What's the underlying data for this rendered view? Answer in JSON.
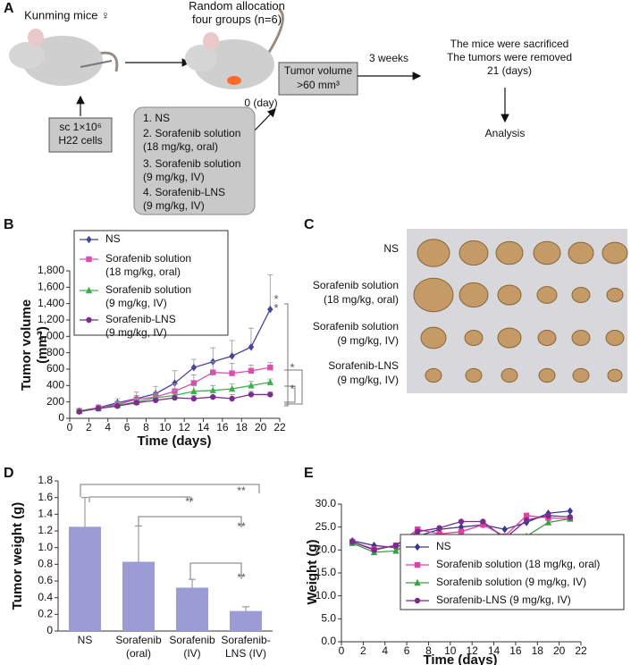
{
  "panel_labels": [
    "A",
    "B",
    "C",
    "D",
    "E"
  ],
  "panel_a": {
    "mouse_label": "Kunming mice ♀",
    "allocation": "Random allocation\nfour groups (n=6)",
    "injection": "sc 1×10⁶\nH22 cells",
    "tumor_box": "Tumor volume\n>60 mm³",
    "start_day": "0 (day)",
    "duration": "3 weeks",
    "end_text": "The mice were sacrificed\nThe tumors were removed\n21 (days)",
    "analysis": "Analysis",
    "groups": [
      "1. NS",
      "2. Sorafenib solution\n(18 mg/kg, oral)",
      "3. Sorafenib solution\n(9 mg/kg, IV)",
      "4. Sorafenib-LNS\n(9 mg/kg, IV)"
    ]
  },
  "panel_c": {
    "row_labels": [
      "NS",
      "Sorafenib solution\n(18 mg/kg, oral)",
      "Sorafenib solution\n(9 mg/kg, IV)",
      "Sorafenib-LNS\n(9 mg/kg, IV)"
    ]
  },
  "chart_data": [
    {
      "type": "line",
      "x_label": "Time (days)",
      "y_label": "Tumor volume\n(mm³)",
      "x": [
        1,
        3,
        5,
        7,
        9,
        11,
        13,
        15,
        17,
        19,
        21
      ],
      "xlim": [
        0,
        22
      ],
      "xticks": [
        0,
        2,
        4,
        6,
        8,
        10,
        12,
        14,
        16,
        18,
        20,
        22
      ],
      "ylim": [
        0,
        1800
      ],
      "yticks": [
        0,
        200,
        400,
        600,
        800,
        {
          "value": 1000,
          "label": "1,000"
        },
        {
          "value": 1200,
          "label": "1,200"
        },
        {
          "value": 1400,
          "label": "1,400"
        },
        {
          "value": 1600,
          "label": "1,600"
        },
        {
          "value": 1800,
          "label": "1,800"
        }
      ],
      "series": [
        {
          "name": "NS",
          "color": "#45459a",
          "marker": "diamond",
          "values": [
            90,
            130,
            190,
            240,
            300,
            430,
            620,
            690,
            760,
            870,
            1330
          ],
          "errors": [
            20,
            30,
            50,
            80,
            90,
            150,
            100,
            170,
            190,
            230,
            420
          ]
        },
        {
          "name": "Sorafenib solution\n(18 mg/kg, oral)",
          "color": "#d94fb0",
          "marker": "square",
          "values": [
            90,
            130,
            170,
            230,
            260,
            330,
            430,
            560,
            550,
            580,
            620
          ],
          "errors": [
            20,
            20,
            40,
            50,
            60,
            90,
            100,
            130,
            120,
            70,
            60
          ]
        },
        {
          "name": "Sorafenib solution\n(9 mg/kg, IV)",
          "color": "#3fae49",
          "marker": "triangle",
          "values": [
            90,
            120,
            160,
            200,
            250,
            280,
            330,
            340,
            360,
            400,
            440
          ],
          "errors": [
            20,
            20,
            30,
            40,
            50,
            60,
            70,
            60,
            60,
            50,
            40
          ]
        },
        {
          "name": "Sorafenib-LNS\n(9 mg/kg, IV)",
          "color": "#7b2d8e",
          "marker": "circle",
          "values": [
            80,
            120,
            150,
            190,
            220,
            250,
            240,
            260,
            240,
            290,
            290
          ],
          "errors": [
            20,
            20,
            30,
            40,
            40,
            50,
            40,
            50,
            50,
            40,
            30
          ]
        }
      ],
      "annotations": [
        "*\n*",
        "*",
        "*"
      ]
    },
    {
      "type": "bar",
      "y_label": "Tumor weight (g)",
      "categories": [
        "NS",
        "Sorafenib\n(oral)",
        "Sorafenib\n(IV)",
        "Sorafenib-\nLNS (IV)"
      ],
      "values": [
        1.25,
        0.83,
        0.52,
        0.24
      ],
      "errors": [
        0.35,
        0.43,
        0.1,
        0.05
      ],
      "color": "#9b9bd6",
      "ylim": [
        0,
        1.8
      ],
      "yticks": [
        0,
        0.2,
        0.4,
        0.6,
        0.8,
        {
          "value": 1,
          "label": "1.0"
        },
        1.2,
        1.4,
        1.6,
        1.8
      ],
      "annotations": [
        "**",
        "**",
        "**",
        "**"
      ]
    },
    {
      "type": "line",
      "x_label": "Time (days)",
      "y_label": "Weight (g)",
      "x": [
        1,
        3,
        5,
        7,
        9,
        11,
        13,
        15,
        17,
        19,
        21
      ],
      "xlim": [
        0,
        22
      ],
      "xticks": [
        0,
        2,
        4,
        6,
        8,
        10,
        12,
        14,
        16,
        18,
        20,
        22
      ],
      "ylim": [
        0,
        30
      ],
      "yticks": [
        {
          "value": 0,
          "label": "0.0"
        },
        {
          "value": 5,
          "label": "5.0"
        },
        {
          "value": 10,
          "label": "10.0"
        },
        {
          "value": 15,
          "label": "15.0"
        },
        {
          "value": 20,
          "label": "20.0"
        },
        {
          "value": 25,
          "label": "25.0"
        },
        {
          "value": 30,
          "label": "30.0"
        }
      ],
      "series": [
        {
          "name": "NS",
          "color": "#3a3a8c",
          "marker": "diamond",
          "values": [
            22.0,
            21.0,
            20.5,
            23.0,
            24.5,
            25.0,
            25.5,
            24.5,
            26.0,
            28.0,
            28.5
          ]
        },
        {
          "name": "Sorafenib solution (18 mg/kg, oral)",
          "color": "#e040a0",
          "marker": "square",
          "values": [
            21.8,
            20.2,
            21.0,
            24.5,
            23.5,
            24.0,
            25.5,
            23.0,
            27.5,
            27.0,
            26.8
          ]
        },
        {
          "name": "Sorafenib solution (9 mg/kg, IV)",
          "color": "#3aa040",
          "marker": "triangle",
          "values": [
            21.5,
            19.5,
            19.8,
            22.5,
            22.8,
            22.8,
            22.8,
            22.0,
            23.0,
            26.0,
            26.8
          ]
        },
        {
          "name": "Sorafenib-LNS (9 mg/kg, IV)",
          "color": "#7a2a90",
          "marker": "circle",
          "values": [
            21.8,
            20.0,
            21.0,
            24.0,
            24.8,
            26.2,
            26.2,
            22.5,
            26.5,
            27.5,
            27.2
          ]
        }
      ]
    }
  ]
}
